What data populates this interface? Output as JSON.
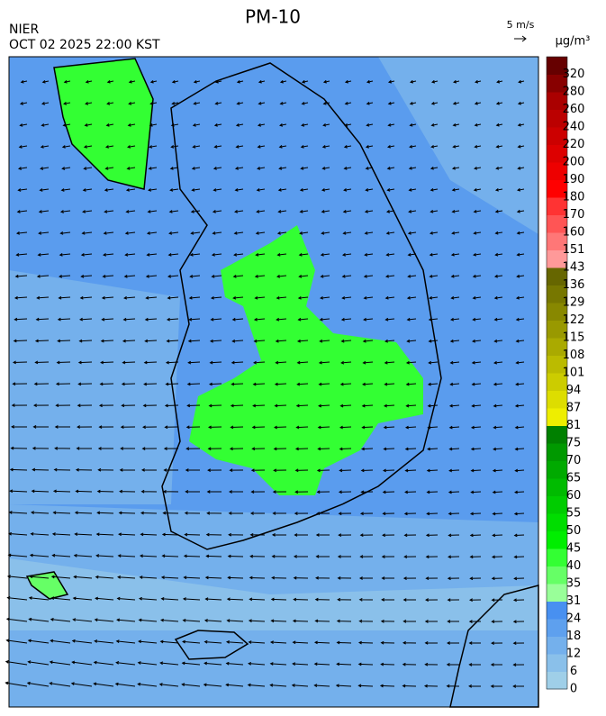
{
  "header": {
    "title": "PM-10",
    "agency": "NIER",
    "datetime": "OCT 02 2025 22:00 KST",
    "wind_scale": "5 m/s"
  },
  "colorbar": {
    "unit": "µg/m³",
    "levels": [
      0,
      6,
      12,
      18,
      24,
      31,
      35,
      40,
      45,
      50,
      55,
      60,
      65,
      70,
      75,
      81,
      87,
      94,
      101,
      108,
      115,
      122,
      129,
      136,
      143,
      151,
      160,
      170,
      180,
      190,
      200,
      220,
      240,
      260,
      280,
      320
    ],
    "colors": [
      "#9fcfe8",
      "#8ac0ea",
      "#74b0ec",
      "#5ea0ee",
      "#4890f0",
      "#99ff99",
      "#66ff66",
      "#33ff33",
      "#00ee00",
      "#00dd00",
      "#00cc00",
      "#00bb00",
      "#00aa00",
      "#009900",
      "#008000",
      "#eeee00",
      "#dddd00",
      "#cccc00",
      "#bbbb00",
      "#aaaa00",
      "#999900",
      "#888800",
      "#777700",
      "#666600",
      "#ff9999",
      "#ff7777",
      "#ff5555",
      "#ff3333",
      "#ff0000",
      "#ee0000",
      "#dd0000",
      "#cc0000",
      "#bb0000",
      "#aa0000",
      "#880000",
      "#660000"
    ]
  }
}
